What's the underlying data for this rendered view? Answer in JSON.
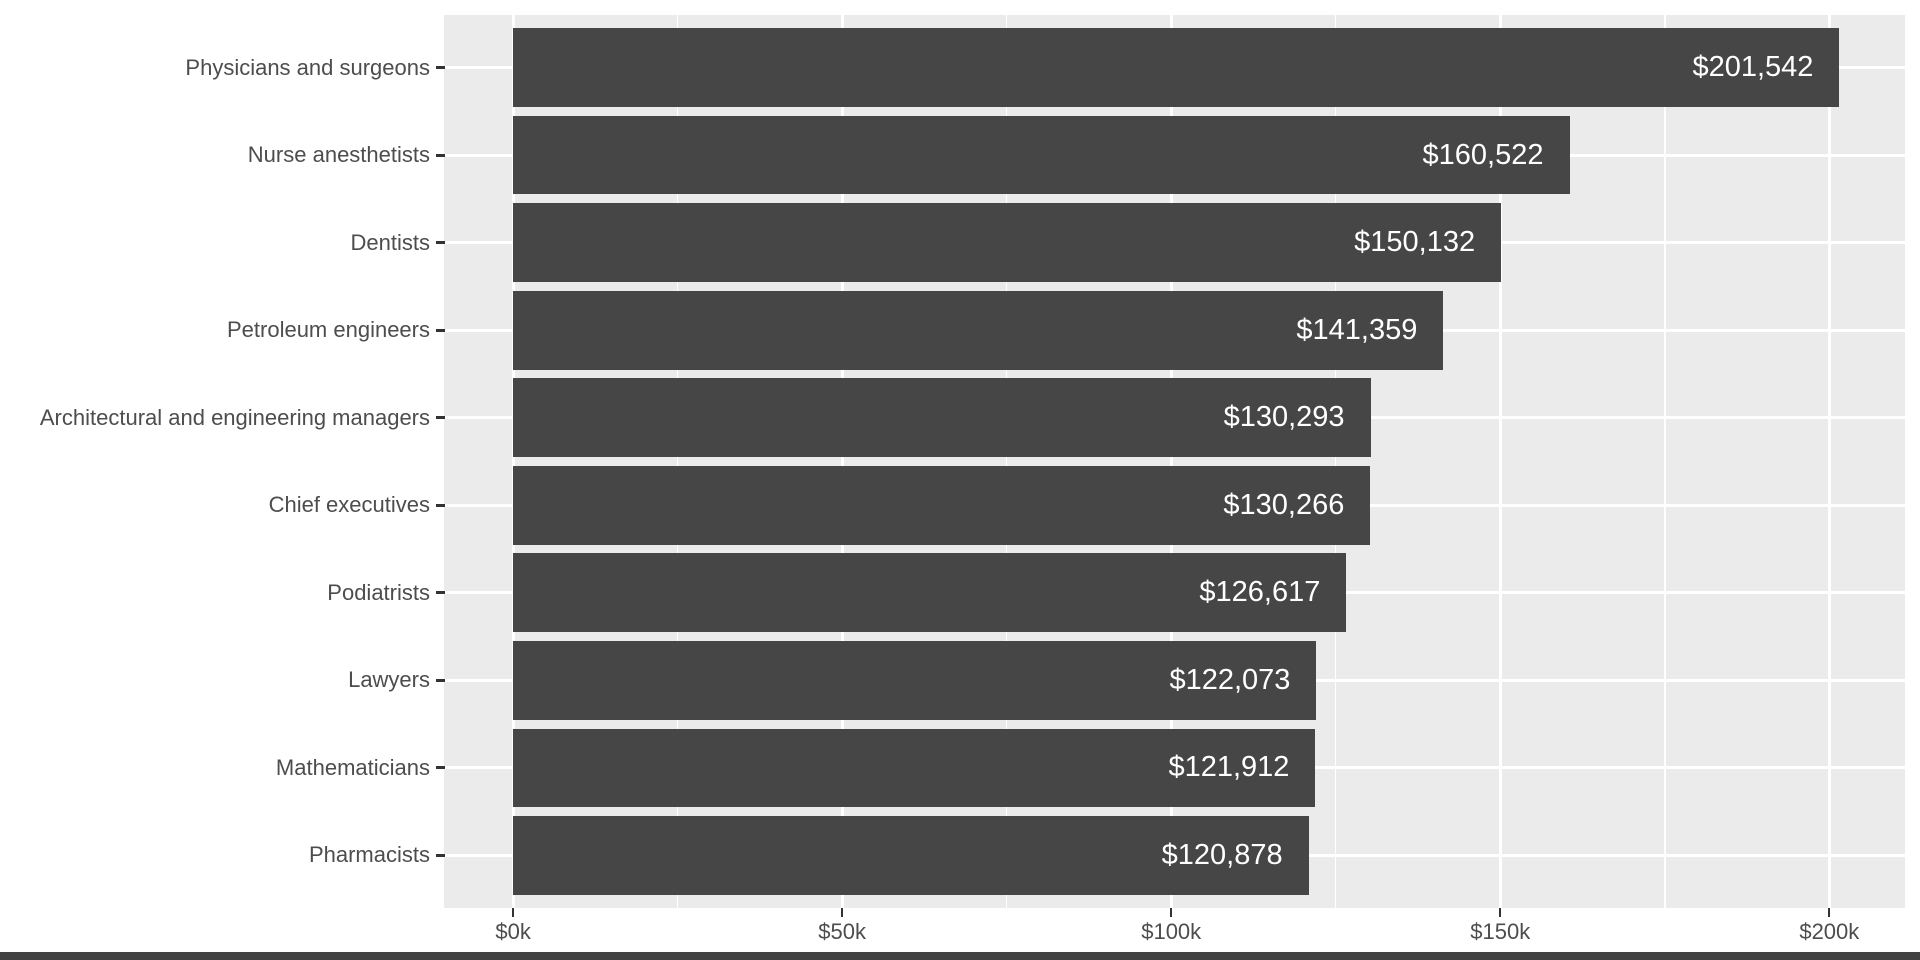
{
  "chart_data": {
    "type": "bar",
    "orientation": "horizontal",
    "title": "",
    "xlabel": "",
    "ylabel": "",
    "legend": "none",
    "grid": "white major and minor vertical gridlines, white major horizontal gridlines on gray panel",
    "categories": [
      "Physicians and surgeons",
      "Nurse anesthetists",
      "Dentists",
      "Petroleum engineers",
      "Architectural and engineering managers",
      "Chief executives",
      "Podiatrists",
      "Lawyers",
      "Mathematicians",
      "Pharmacists"
    ],
    "values": [
      201542,
      160522,
      150132,
      141359,
      130293,
      130266,
      126617,
      122073,
      121912,
      120878
    ],
    "value_labels": [
      "$201,542",
      "$160,522",
      "$150,132",
      "$141,359",
      "$130,293",
      "$130,266",
      "$126,617",
      "$122,073",
      "$121,912",
      "$120,878"
    ],
    "x_ticks": [
      {
        "label": "$0k",
        "value": 0
      },
      {
        "label": "$50k",
        "value": 50000
      },
      {
        "label": "$100k",
        "value": 100000
      },
      {
        "label": "$150k",
        "value": 150000
      },
      {
        "label": "$200k",
        "value": 200000
      }
    ],
    "x_minor_ticks": [
      25000,
      75000,
      125000,
      175000
    ],
    "xlim": [
      -10500,
      211500
    ],
    "colors": {
      "bar": "#464646",
      "panel_bg": "#ebebeb",
      "gridline": "#ffffff",
      "axis_text": "#4d4d4d",
      "value_text": "#ffffff",
      "tick_mark": "#333333",
      "page_bg": "#ffffff",
      "bottom_strip": "#424242"
    }
  }
}
